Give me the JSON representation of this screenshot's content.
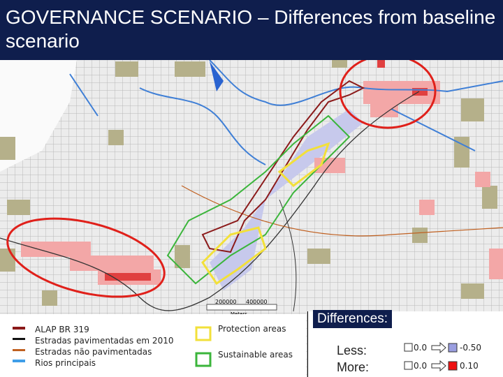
{
  "header": {
    "title": "GOVERNANCE SCENARIO – Differences from baseline scenario"
  },
  "scale_bar": {
    "labels": [
      "200000",
      "400000"
    ],
    "unit": "Meters"
  },
  "legend_lines": [
    "ALAP BR 319",
    "Estradas pavimentadas em 2010",
    "Estradas não pavimentadas",
    "Rios principais"
  ],
  "legend_areas": [
    "Protection areas",
    "Sustainable areas"
  ],
  "differences": {
    "title": "Differences:",
    "rows": [
      {
        "label": "Less:",
        "from": "0.0",
        "to": "-0.50"
      },
      {
        "label": "More:",
        "from": "0.0",
        "to": "0.10"
      }
    ]
  }
}
